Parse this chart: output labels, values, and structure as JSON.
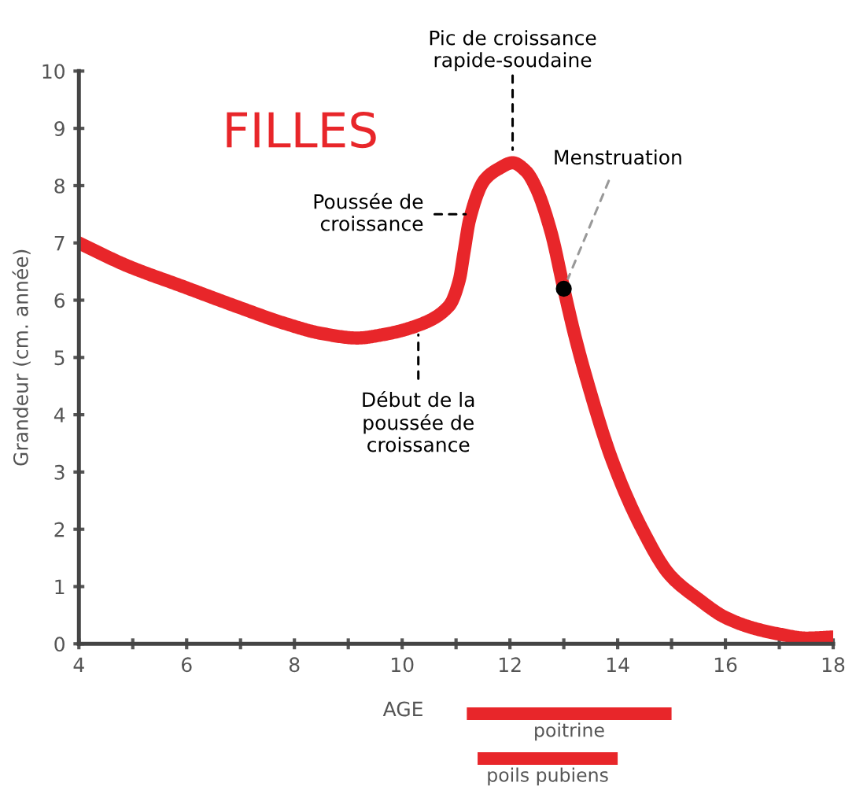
{
  "chart_data": [
    {
      "type": "line",
      "title": "FILLES",
      "xlabel": "AGE",
      "ylabel": "Grandeur (cm. année)",
      "series": [
        {
          "type": "line",
          "color": "#e8262a",
          "x": [
            4,
            4.9,
            5.9,
            6.9,
            7.87,
            8.5,
            9.17,
            9.65,
            10.26,
            10.87,
            11.06,
            11.15,
            11.25,
            11.53,
            11.8,
            12.05,
            12.3,
            12.48,
            12.76,
            13.0,
            13.2,
            13.4,
            13.9,
            14.44,
            14.97,
            15.5,
            16.0,
            16.5,
            17.0,
            17.5,
            18
          ],
          "values": [
            7.0,
            6.6,
            6.25,
            5.9,
            5.58,
            5.42,
            5.34,
            5.4,
            5.55,
            5.9,
            6.35,
            6.85,
            7.4,
            8.1,
            8.3,
            8.4,
            8.25,
            7.97,
            7.2,
            6.2,
            5.4,
            4.7,
            3.2,
            2.03,
            1.2,
            0.78,
            0.46,
            0.28,
            0.17,
            0.1,
            0.12
          ]
        },
        {
          "type": "scatter",
          "color": "#000000",
          "x": [
            13.0
          ],
          "values": [
            6.2
          ]
        }
      ],
      "annotations": [
        {
          "text": "Pic de croissance\nrapide-soudaine",
          "x": 12.05,
          "y": 8.4
        },
        {
          "text": "Menstruation",
          "x": 13.0,
          "y": 6.2
        },
        {
          "text": "Poussée de\ncroissance",
          "x": 11.3,
          "y": 7.5
        },
        {
          "text": "Début de la\npoussée de\ncroissance",
          "x": 10.3,
          "y": 5.55
        }
      ],
      "xlim": [
        4,
        18
      ],
      "ylim": [
        0,
        10
      ],
      "xticks": [
        4,
        {
          "value": 5,
          "label": null
        },
        6,
        {
          "value": 7,
          "label": null
        },
        8,
        {
          "value": 9,
          "label": null
        },
        10,
        {
          "value": 11,
          "label": null
        },
        12,
        {
          "value": 13,
          "label": null
        },
        14,
        {
          "value": 15,
          "label": null
        },
        16,
        {
          "value": 17,
          "label": null
        },
        18
      ],
      "yticks": [
        0,
        1,
        2,
        3,
        4,
        5,
        6,
        7,
        8,
        9,
        10
      ],
      "grid": false,
      "line_style": "solid"
    },
    {
      "type": "bar",
      "orientation": "horizontal",
      "categories": [
        "poitrine",
        "poils pubiens"
      ],
      "base": [
        11.2,
        11.4
      ],
      "values": [
        3.8,
        2.6
      ],
      "color": "#e8262a",
      "xlim": [
        4,
        18
      ],
      "tick_labels": false
    }
  ]
}
